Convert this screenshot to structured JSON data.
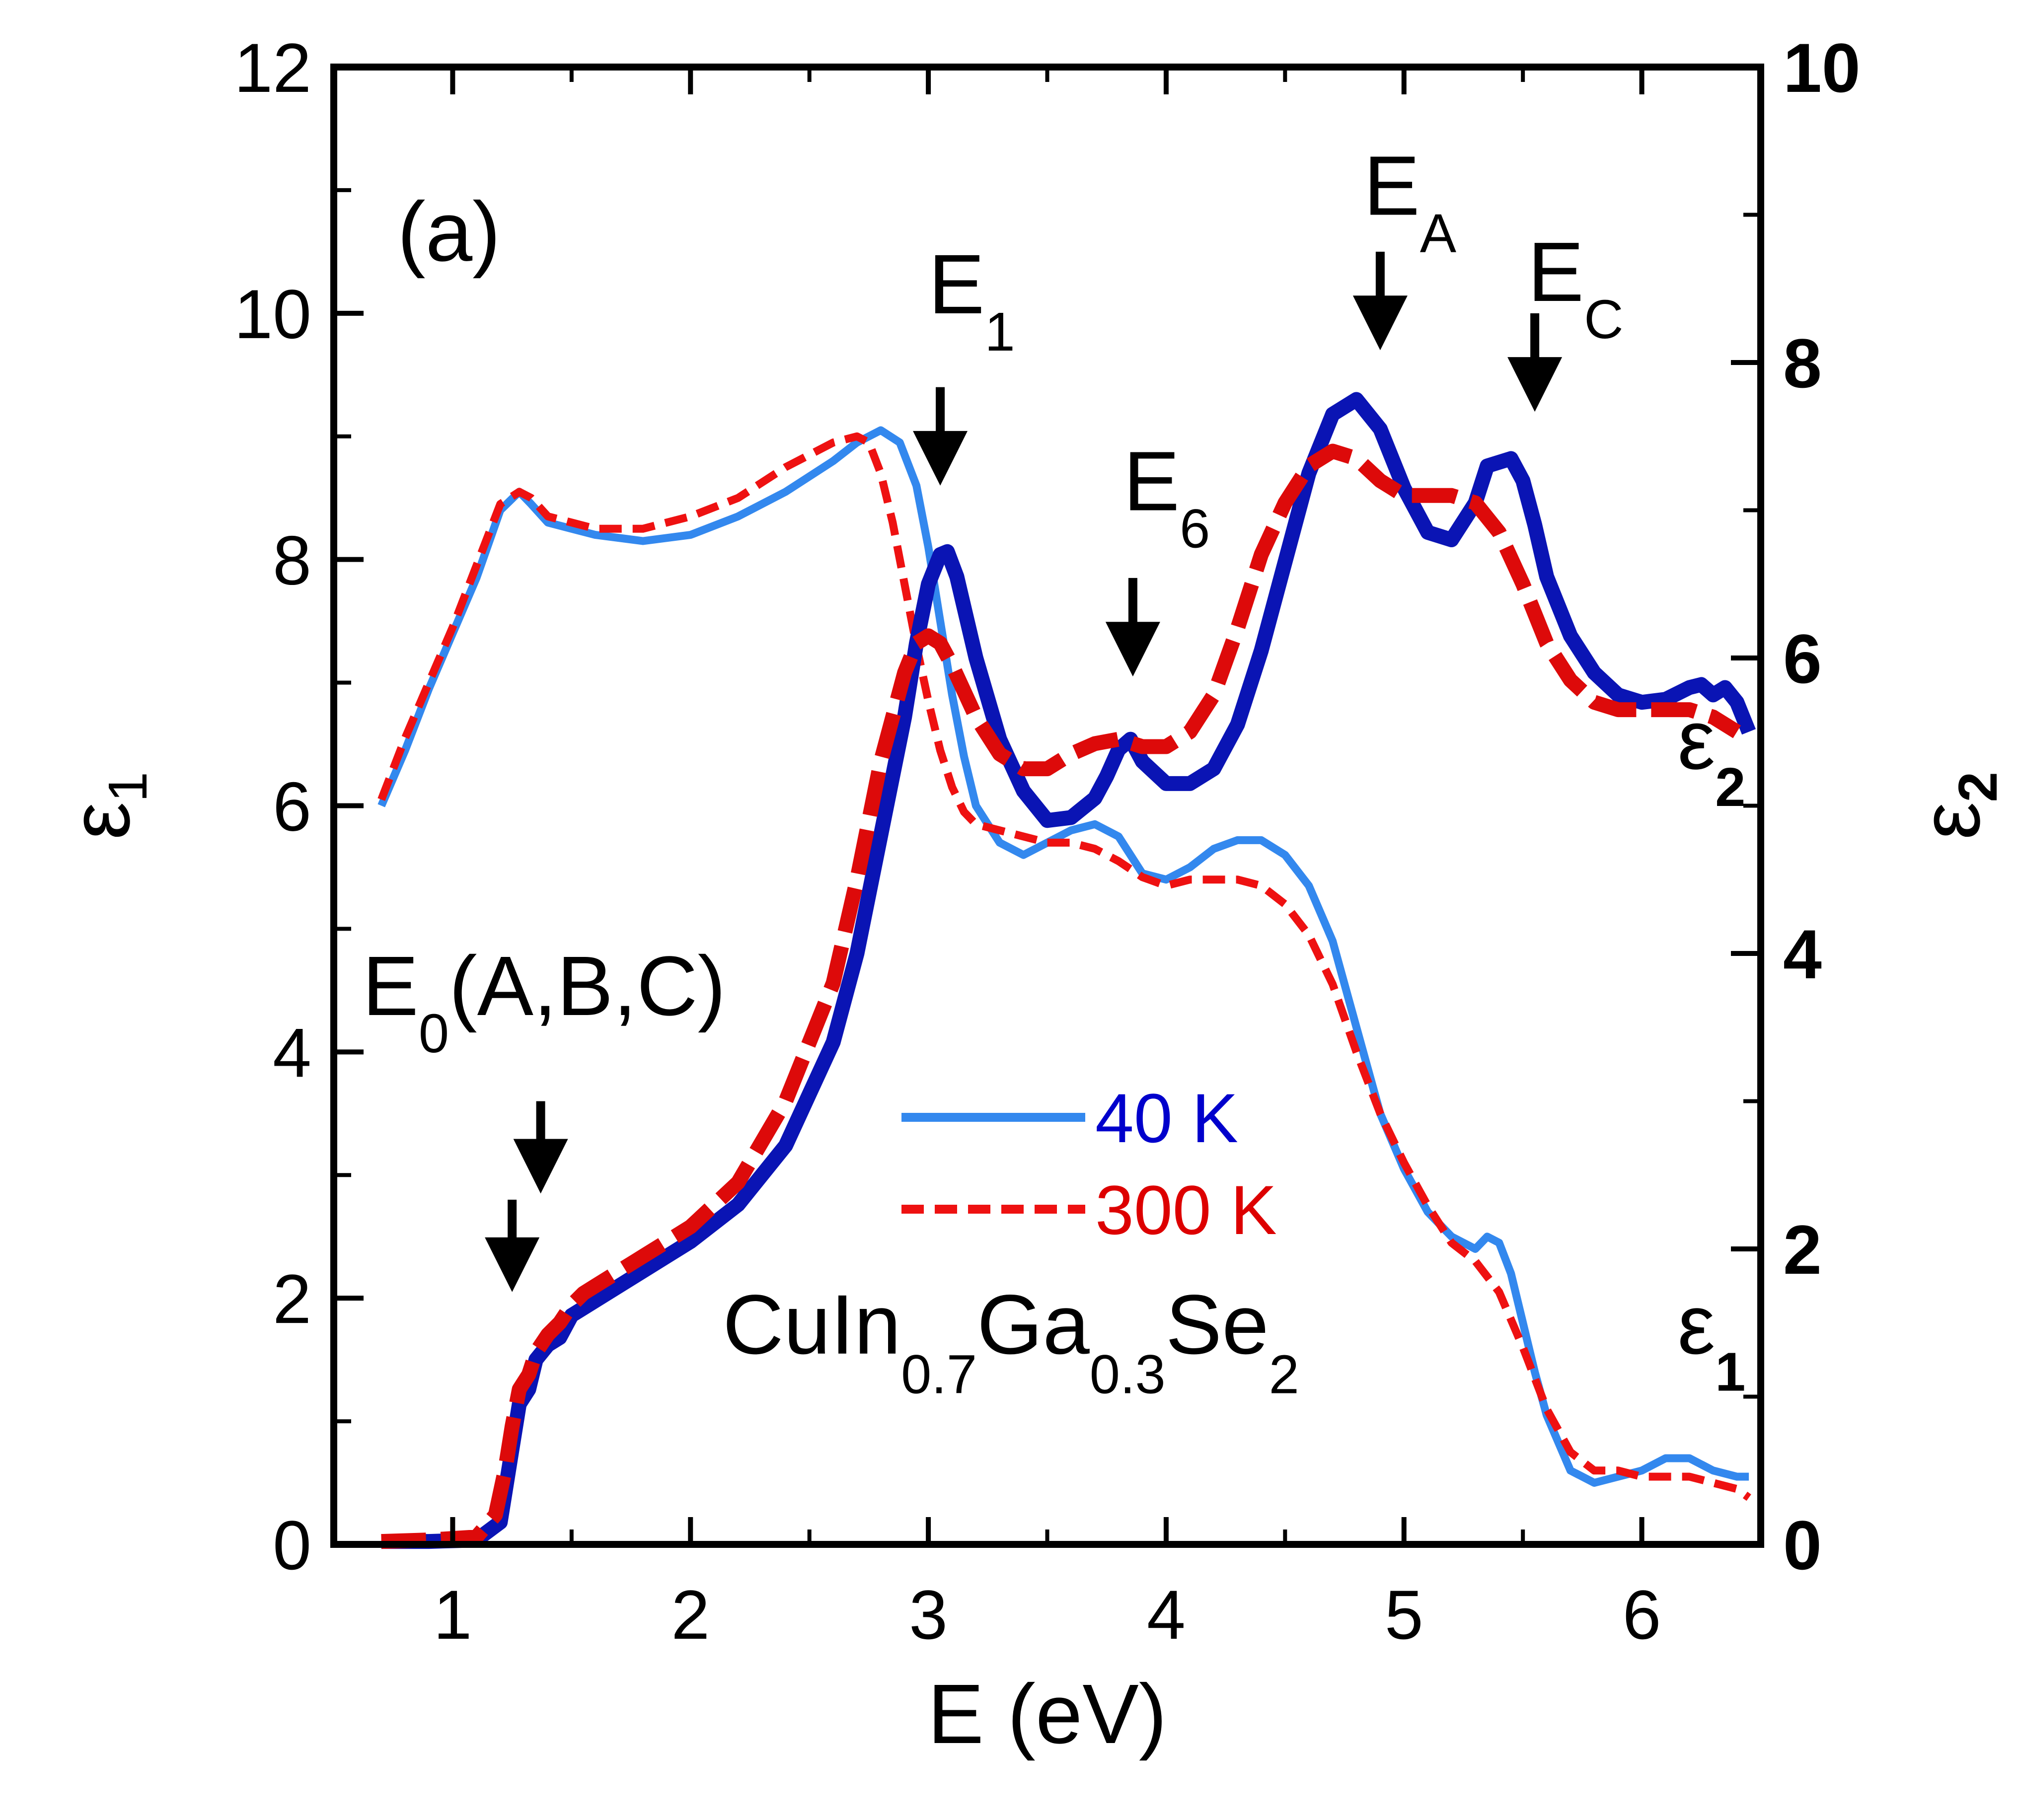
{
  "chart_data": {
    "type": "line",
    "panel_label": "(a)",
    "material": {
      "parts": [
        {
          "text": "CuIn",
          "sub": "0.7"
        },
        {
          "text": "Ga",
          "sub": "0.3"
        },
        {
          "text": "Se",
          "sub": "2"
        }
      ]
    },
    "xlabel": "E (eV)",
    "ylabel_left": {
      "sym": "ε",
      "sub": "1"
    },
    "ylabel_right": {
      "sym": "ε",
      "sub": "2"
    },
    "xlim": [
      0.5,
      6.5
    ],
    "ylim_left": [
      0,
      12
    ],
    "ylim_right": [
      0,
      10
    ],
    "x_ticks": [
      "1",
      "2",
      "3",
      "4",
      "5",
      "6"
    ],
    "y_left_ticks": [
      "0",
      "2",
      "4",
      "6",
      "8",
      "10",
      "12"
    ],
    "y_right_ticks": [
      "0",
      "2",
      "4",
      "6",
      "8",
      "10"
    ],
    "grid": false,
    "legend": {
      "position": "center",
      "entries": [
        {
          "label": "40 K",
          "color": "#3388ee",
          "text_color": "#0000cc",
          "style": "solid"
        },
        {
          "label": "300 K",
          "color": "#ee1111",
          "text_color": "#dd0000",
          "style": "dashed"
        }
      ]
    },
    "curve_labels": [
      {
        "sym": "ε",
        "sub": "2",
        "x": 6.15,
        "y_left": 6.3
      },
      {
        "sym": "ε",
        "sub": "1",
        "x": 6.15,
        "y_left": 1.55
      }
    ],
    "annotations": [
      {
        "main": "E",
        "sub": "0",
        "tail": "(A,B,C)",
        "x": 0.62,
        "y_left": 4.3
      },
      {
        "main": "E",
        "sub": "1",
        "x": 3.0,
        "y_left": 10.0
      },
      {
        "main": "E",
        "sub": "6",
        "x": 3.82,
        "y_left": 8.4
      },
      {
        "main": "E",
        "sub": "A",
        "x": 4.83,
        "y_left": 10.8
      },
      {
        "main": "E",
        "sub": "C",
        "x": 5.52,
        "y_left": 10.1
      }
    ],
    "arrows": [
      {
        "x": 1.25,
        "y_left_top": 2.8,
        "y_left_tip": 2.05
      },
      {
        "x": 1.37,
        "y_left_top": 3.6,
        "y_left_tip": 2.85
      },
      {
        "x": 3.05,
        "y_left_top": 9.4,
        "y_left_tip": 8.6
      },
      {
        "x": 3.86,
        "y_left_top": 7.85,
        "y_left_tip": 7.05
      },
      {
        "x": 4.9,
        "y_left_top": 10.5,
        "y_left_tip": 9.7
      },
      {
        "x": 5.55,
        "y_left_top": 10.0,
        "y_left_tip": 9.2
      }
    ],
    "series": [
      {
        "name": "40 K",
        "quantity": "ε1",
        "axis": "left",
        "color": "#3388ee",
        "style": "solid",
        "width": 16,
        "x": [
          0.7,
          0.8,
          0.9,
          1.0,
          1.1,
          1.2,
          1.28,
          1.33,
          1.4,
          1.5,
          1.6,
          1.8,
          2.0,
          2.2,
          2.4,
          2.6,
          2.7,
          2.8,
          2.88,
          2.95,
          3.0,
          3.05,
          3.1,
          3.15,
          3.2,
          3.3,
          3.4,
          3.5,
          3.6,
          3.7,
          3.8,
          3.9,
          4.0,
          4.1,
          4.2,
          4.3,
          4.4,
          4.5,
          4.6,
          4.7,
          4.8,
          4.9,
          5.0,
          5.1,
          5.2,
          5.3,
          5.35,
          5.4,
          5.45,
          5.5,
          5.55,
          5.6,
          5.7,
          5.8,
          5.9,
          6.0,
          6.1,
          6.2,
          6.3,
          6.4,
          6.45
        ],
        "y": [
          6.0,
          6.45,
          6.95,
          7.4,
          7.85,
          8.4,
          8.55,
          8.45,
          8.3,
          8.25,
          8.2,
          8.15,
          8.2,
          8.35,
          8.55,
          8.8,
          8.95,
          9.05,
          8.95,
          8.6,
          8.1,
          7.5,
          6.9,
          6.4,
          6.0,
          5.7,
          5.6,
          5.7,
          5.8,
          5.85,
          5.75,
          5.45,
          5.4,
          5.5,
          5.65,
          5.72,
          5.72,
          5.6,
          5.35,
          4.9,
          4.2,
          3.5,
          3.05,
          2.7,
          2.5,
          2.4,
          2.5,
          2.45,
          2.2,
          1.8,
          1.4,
          1.05,
          0.6,
          0.5,
          0.55,
          0.6,
          0.7,
          0.7,
          0.6,
          0.55,
          0.55
        ]
      },
      {
        "name": "300 K",
        "quantity": "ε1",
        "axis": "left",
        "color": "#ee1111",
        "style": "dashed",
        "width": 16,
        "x": [
          0.7,
          0.8,
          0.9,
          1.0,
          1.1,
          1.2,
          1.28,
          1.33,
          1.4,
          1.5,
          1.6,
          1.8,
          2.0,
          2.2,
          2.4,
          2.5,
          2.6,
          2.7,
          2.75,
          2.8,
          2.85,
          2.9,
          2.95,
          3.0,
          3.05,
          3.1,
          3.15,
          3.2,
          3.3,
          3.4,
          3.5,
          3.6,
          3.7,
          3.8,
          3.9,
          4.0,
          4.1,
          4.2,
          4.3,
          4.4,
          4.5,
          4.6,
          4.7,
          4.8,
          4.9,
          5.0,
          5.1,
          5.2,
          5.3,
          5.4,
          5.5,
          5.6,
          5.7,
          5.8,
          5.9,
          6.0,
          6.1,
          6.2,
          6.3,
          6.4,
          6.45
        ],
        "y": [
          6.05,
          6.55,
          7.0,
          7.45,
          7.95,
          8.45,
          8.55,
          8.5,
          8.35,
          8.3,
          8.25,
          8.25,
          8.35,
          8.5,
          8.75,
          8.85,
          8.95,
          9.0,
          8.95,
          8.7,
          8.3,
          7.8,
          7.3,
          6.85,
          6.45,
          6.15,
          5.95,
          5.85,
          5.8,
          5.75,
          5.7,
          5.7,
          5.65,
          5.55,
          5.42,
          5.35,
          5.4,
          5.4,
          5.4,
          5.35,
          5.2,
          4.95,
          4.55,
          4.0,
          3.5,
          3.1,
          2.75,
          2.45,
          2.3,
          2.05,
          1.6,
          1.1,
          0.75,
          0.6,
          0.6,
          0.55,
          0.55,
          0.55,
          0.5,
          0.45,
          0.38
        ]
      },
      {
        "name": "40 K",
        "quantity": "ε2",
        "axis": "right",
        "color": "#0a14b4",
        "style": "solid",
        "width": 30,
        "x": [
          0.7,
          0.9,
          1.1,
          1.2,
          1.22,
          1.25,
          1.28,
          1.32,
          1.35,
          1.4,
          1.45,
          1.5,
          1.55,
          1.6,
          1.7,
          1.8,
          2.0,
          2.2,
          2.4,
          2.6,
          2.7,
          2.8,
          2.9,
          2.95,
          3.0,
          3.05,
          3.08,
          3.12,
          3.2,
          3.3,
          3.4,
          3.5,
          3.6,
          3.7,
          3.75,
          3.8,
          3.85,
          3.9,
          4.0,
          4.1,
          4.2,
          4.3,
          4.4,
          4.5,
          4.6,
          4.7,
          4.8,
          4.9,
          5.0,
          5.1,
          5.2,
          5.3,
          5.35,
          5.45,
          5.5,
          5.55,
          5.6,
          5.7,
          5.8,
          5.9,
          6.0,
          6.1,
          6.2,
          6.25,
          6.3,
          6.35,
          6.4,
          6.45
        ],
        "y": [
          0.02,
          0.02,
          0.03,
          0.15,
          0.35,
          0.65,
          0.95,
          1.05,
          1.25,
          1.35,
          1.4,
          1.55,
          1.6,
          1.65,
          1.75,
          1.85,
          2.05,
          2.3,
          2.7,
          3.4,
          4.0,
          4.8,
          5.6,
          6.1,
          6.5,
          6.7,
          6.72,
          6.55,
          6.0,
          5.45,
          5.1,
          4.9,
          4.92,
          5.05,
          5.2,
          5.38,
          5.45,
          5.3,
          5.15,
          5.15,
          5.25,
          5.55,
          6.05,
          6.65,
          7.25,
          7.65,
          7.75,
          7.55,
          7.15,
          6.85,
          6.8,
          7.05,
          7.3,
          7.35,
          7.2,
          6.9,
          6.55,
          6.15,
          5.9,
          5.75,
          5.7,
          5.72,
          5.8,
          5.82,
          5.75,
          5.8,
          5.7,
          5.5
        ]
      },
      {
        "name": "300 K",
        "quantity": "ε2",
        "axis": "right",
        "color": "#dd0a0a",
        "style": "dashed",
        "width": 30,
        "x": [
          0.7,
          0.9,
          1.1,
          1.18,
          1.22,
          1.25,
          1.28,
          1.32,
          1.35,
          1.4,
          1.45,
          1.5,
          1.55,
          1.6,
          1.7,
          1.8,
          2.0,
          2.2,
          2.4,
          2.6,
          2.7,
          2.8,
          2.9,
          2.95,
          3.0,
          3.05,
          3.1,
          3.2,
          3.3,
          3.4,
          3.5,
          3.6,
          3.7,
          3.8,
          3.9,
          4.0,
          4.1,
          4.2,
          4.3,
          4.4,
          4.5,
          4.6,
          4.7,
          4.8,
          4.9,
          5.0,
          5.1,
          5.2,
          5.3,
          5.4,
          5.5,
          5.6,
          5.7,
          5.8,
          5.9,
          6.0,
          6.1,
          6.2,
          6.3,
          6.4
        ],
        "y": [
          0.02,
          0.03,
          0.05,
          0.2,
          0.5,
          0.8,
          1.05,
          1.15,
          1.3,
          1.42,
          1.5,
          1.62,
          1.7,
          1.75,
          1.85,
          1.95,
          2.15,
          2.45,
          3.0,
          3.8,
          4.5,
          5.3,
          5.9,
          6.1,
          6.15,
          6.1,
          5.95,
          5.6,
          5.35,
          5.25,
          5.25,
          5.35,
          5.42,
          5.45,
          5.4,
          5.4,
          5.5,
          5.75,
          6.2,
          6.7,
          7.05,
          7.3,
          7.4,
          7.35,
          7.2,
          7.1,
          7.1,
          7.1,
          7.05,
          6.85,
          6.5,
          6.1,
          5.85,
          5.7,
          5.65,
          5.65,
          5.65,
          5.65,
          5.6,
          5.5
        ]
      }
    ]
  }
}
